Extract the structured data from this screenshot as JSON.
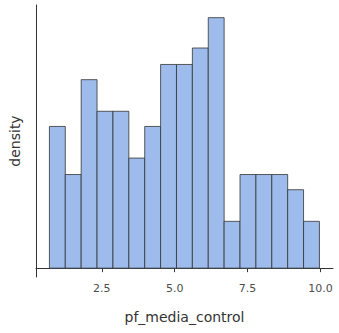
{
  "chart_data": {
    "type": "histogram",
    "x_label": "pf_media_control",
    "y_label": "density",
    "bins": [
      0.7,
      1.245,
      1.79,
      2.335,
      2.88,
      3.425,
      3.97,
      4.515,
      5.06,
      5.605,
      6.15,
      6.695,
      7.24,
      7.785,
      8.33,
      8.875,
      9.42,
      9.965
    ],
    "values": [
      0.112,
      0.074,
      0.149,
      0.124,
      0.124,
      0.087,
      0.112,
      0.161,
      0.161,
      0.174,
      0.198,
      0.037,
      0.074,
      0.074,
      0.074,
      0.062,
      0.037
    ],
    "color": "#9dbbeb",
    "xlim": [
      0.24,
      10.43
    ],
    "xticks": [
      {
        "value": 2.5,
        "label": "2.5"
      },
      {
        "value": 5,
        "label": "5.0"
      },
      {
        "value": 7.5,
        "label": "7.5"
      },
      {
        "value": 10,
        "label": "10.0"
      }
    ],
    "ylim": [
      -0.007,
      0.208
    ],
    "grid": false,
    "tick_labels": "x"
  }
}
